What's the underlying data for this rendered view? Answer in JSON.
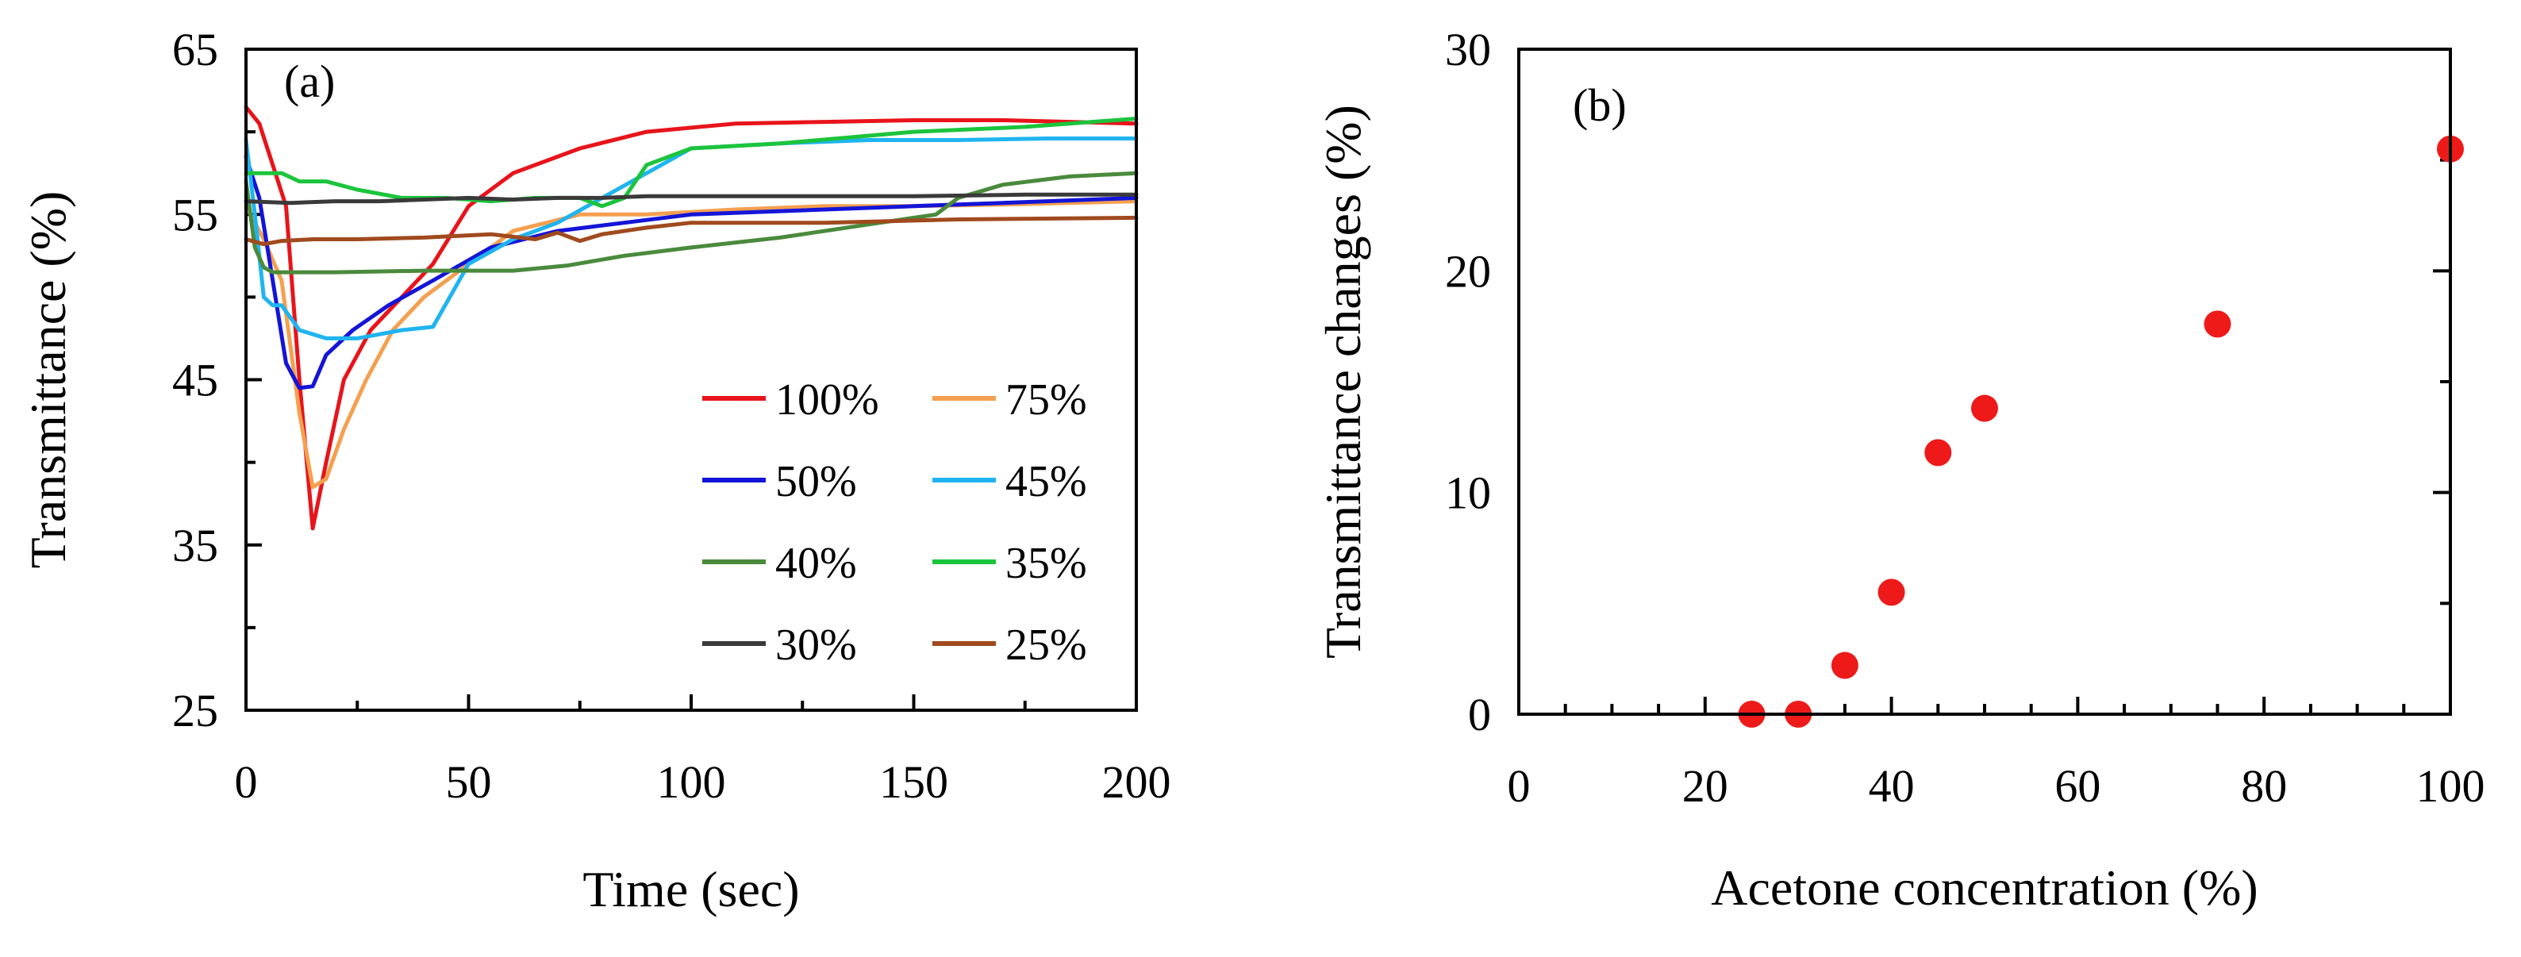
{
  "chart_data": [
    {
      "panel_label": "(a)",
      "type": "line",
      "xlabel": "Time (sec)",
      "ylabel": "Transmittance (%)",
      "xlim": [
        0,
        200
      ],
      "ylim": [
        25,
        65
      ],
      "xticks": [
        0,
        50,
        100,
        150,
        200
      ],
      "yticks": [
        25,
        35,
        45,
        55,
        65
      ],
      "legend_position": "bottom-right",
      "series": [
        {
          "name": "100%",
          "color": "#e8141b",
          "x": [
            0,
            3,
            6,
            9,
            12,
            15,
            18,
            22,
            28,
            35,
            42,
            50,
            60,
            75,
            90,
            110,
            130,
            150,
            170,
            200
          ],
          "y": [
            61.5,
            60.5,
            58,
            55.5,
            45,
            36,
            40,
            45,
            48,
            50,
            52,
            55.5,
            57.5,
            59,
            60,
            60.5,
            60.6,
            60.7,
            60.7,
            60.5
          ]
        },
        {
          "name": "75%",
          "color": "#f4a050",
          "x": [
            0,
            4,
            8,
            12,
            15,
            18,
            22,
            27,
            33,
            40,
            50,
            60,
            75,
            90,
            110,
            130,
            150,
            170,
            200
          ],
          "y": [
            55.5,
            53.5,
            51,
            43,
            38.5,
            39,
            42,
            45,
            48,
            50,
            52,
            54,
            55,
            55,
            55.3,
            55.5,
            55.5,
            55.6,
            55.8
          ]
        },
        {
          "name": "50%",
          "color": "#1414d8",
          "x": [
            0,
            3,
            6,
            9,
            12,
            15,
            18,
            24,
            32,
            42,
            55,
            70,
            85,
            100,
            120,
            150,
            170,
            200
          ],
          "y": [
            58.5,
            56,
            51,
            46,
            44.5,
            44.6,
            46.5,
            48,
            49.5,
            51,
            53,
            54,
            54.5,
            55,
            55.2,
            55.5,
            55.7,
            56
          ]
        },
        {
          "name": "45%",
          "color": "#1fb4f0",
          "x": [
            0,
            2,
            4,
            6,
            8,
            12,
            18,
            25,
            35,
            42,
            50,
            60,
            70,
            80,
            90,
            100,
            120,
            140,
            160,
            180,
            200
          ],
          "y": [
            59.5,
            55,
            50,
            49.5,
            49.5,
            48,
            47.5,
            47.5,
            48,
            48.2,
            52,
            53.5,
            54.5,
            56,
            57.5,
            59,
            59.3,
            59.5,
            59.5,
            59.6,
            59.6
          ]
        },
        {
          "name": "40%",
          "color": "#4a8a3c",
          "x": [
            0,
            2,
            4,
            6,
            10,
            20,
            40,
            60,
            72,
            85,
            100,
            120,
            140,
            155,
            160,
            170,
            185,
            200
          ],
          "y": [
            57,
            53,
            51.8,
            51.5,
            51.5,
            51.5,
            51.6,
            51.6,
            51.9,
            52.5,
            53,
            53.6,
            54.4,
            55,
            56,
            56.8,
            57.3,
            57.5
          ]
        },
        {
          "name": "35%",
          "color": "#1cc43c",
          "x": [
            0,
            8,
            12,
            18,
            25,
            35,
            45,
            55,
            65,
            75,
            80,
            85,
            90,
            100,
            120,
            150,
            175,
            200
          ],
          "y": [
            57.5,
            57.5,
            57,
            57,
            56.5,
            56,
            56,
            55.8,
            56,
            56,
            55.5,
            56,
            58,
            59,
            59.3,
            60,
            60.3,
            60.8
          ]
        },
        {
          "name": "30%",
          "color": "#3a3a3a",
          "x": [
            0,
            10,
            20,
            30,
            40,
            50,
            60,
            70,
            80,
            90,
            100,
            120,
            150,
            175,
            200
          ],
          "y": [
            55.8,
            55.7,
            55.8,
            55.8,
            55.9,
            56,
            55.9,
            56,
            56,
            56.1,
            56.1,
            56.1,
            56.1,
            56.2,
            56.2
          ]
        },
        {
          "name": "25%",
          "color": "#a04a1e",
          "x": [
            0,
            4,
            8,
            15,
            25,
            40,
            55,
            65,
            70,
            75,
            80,
            90,
            100,
            130,
            160,
            200
          ],
          "y": [
            53.5,
            53.2,
            53.4,
            53.5,
            53.5,
            53.6,
            53.8,
            53.5,
            53.9,
            53.4,
            53.8,
            54.2,
            54.5,
            54.5,
            54.7,
            54.8
          ]
        }
      ]
    },
    {
      "panel_label": "(b)",
      "type": "scatter",
      "xlabel": "Acetone concentration (%)",
      "ylabel": "Transmittance changes (%)",
      "xlim": [
        0,
        100
      ],
      "ylim": [
        0,
        30
      ],
      "xticks": [
        0,
        20,
        40,
        60,
        80,
        100
      ],
      "yticks": [
        0,
        10,
        20,
        30
      ],
      "marker_color": "#ee1a1a",
      "points": [
        {
          "x": 25,
          "y": 0
        },
        {
          "x": 30,
          "y": 0
        },
        {
          "x": 35,
          "y": 2.2
        },
        {
          "x": 40,
          "y": 5.5
        },
        {
          "x": 45,
          "y": 11.8
        },
        {
          "x": 50,
          "y": 13.8
        },
        {
          "x": 75,
          "y": 17.6
        },
        {
          "x": 100,
          "y": 25.5
        }
      ]
    }
  ]
}
